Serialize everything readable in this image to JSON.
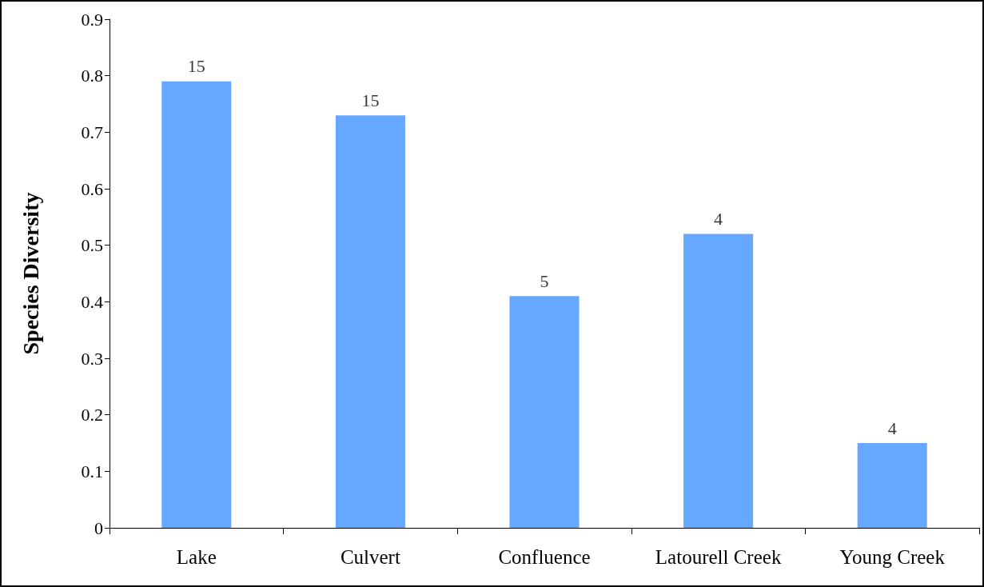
{
  "chart_data": {
    "type": "bar",
    "ylabel": "Species Diversity",
    "categories": [
      "Lake",
      "Culvert",
      "Confluence",
      "Latourell Creek",
      "Young Creek"
    ],
    "values": [
      0.79,
      0.73,
      0.41,
      0.52,
      0.15
    ],
    "annotations": [
      {
        "text": "15",
        "x": "Lake",
        "y": 0.79
      },
      {
        "text": "15",
        "x": "Culvert",
        "y": 0.73
      },
      {
        "text": "5",
        "x": "Confluence",
        "y": 0.41
      },
      {
        "text": "4",
        "x": "Latourell Creek",
        "y": 0.52
      },
      {
        "text": "4",
        "x": "Young Creek",
        "y": 0.15
      }
    ],
    "color": "#66a8ff",
    "ylim": [
      0,
      0.9
    ],
    "yticks": [
      0,
      0.1,
      0.2,
      0.3,
      0.4,
      0.5,
      0.6,
      0.7,
      0.8,
      0.9
    ],
    "grid": false
  }
}
